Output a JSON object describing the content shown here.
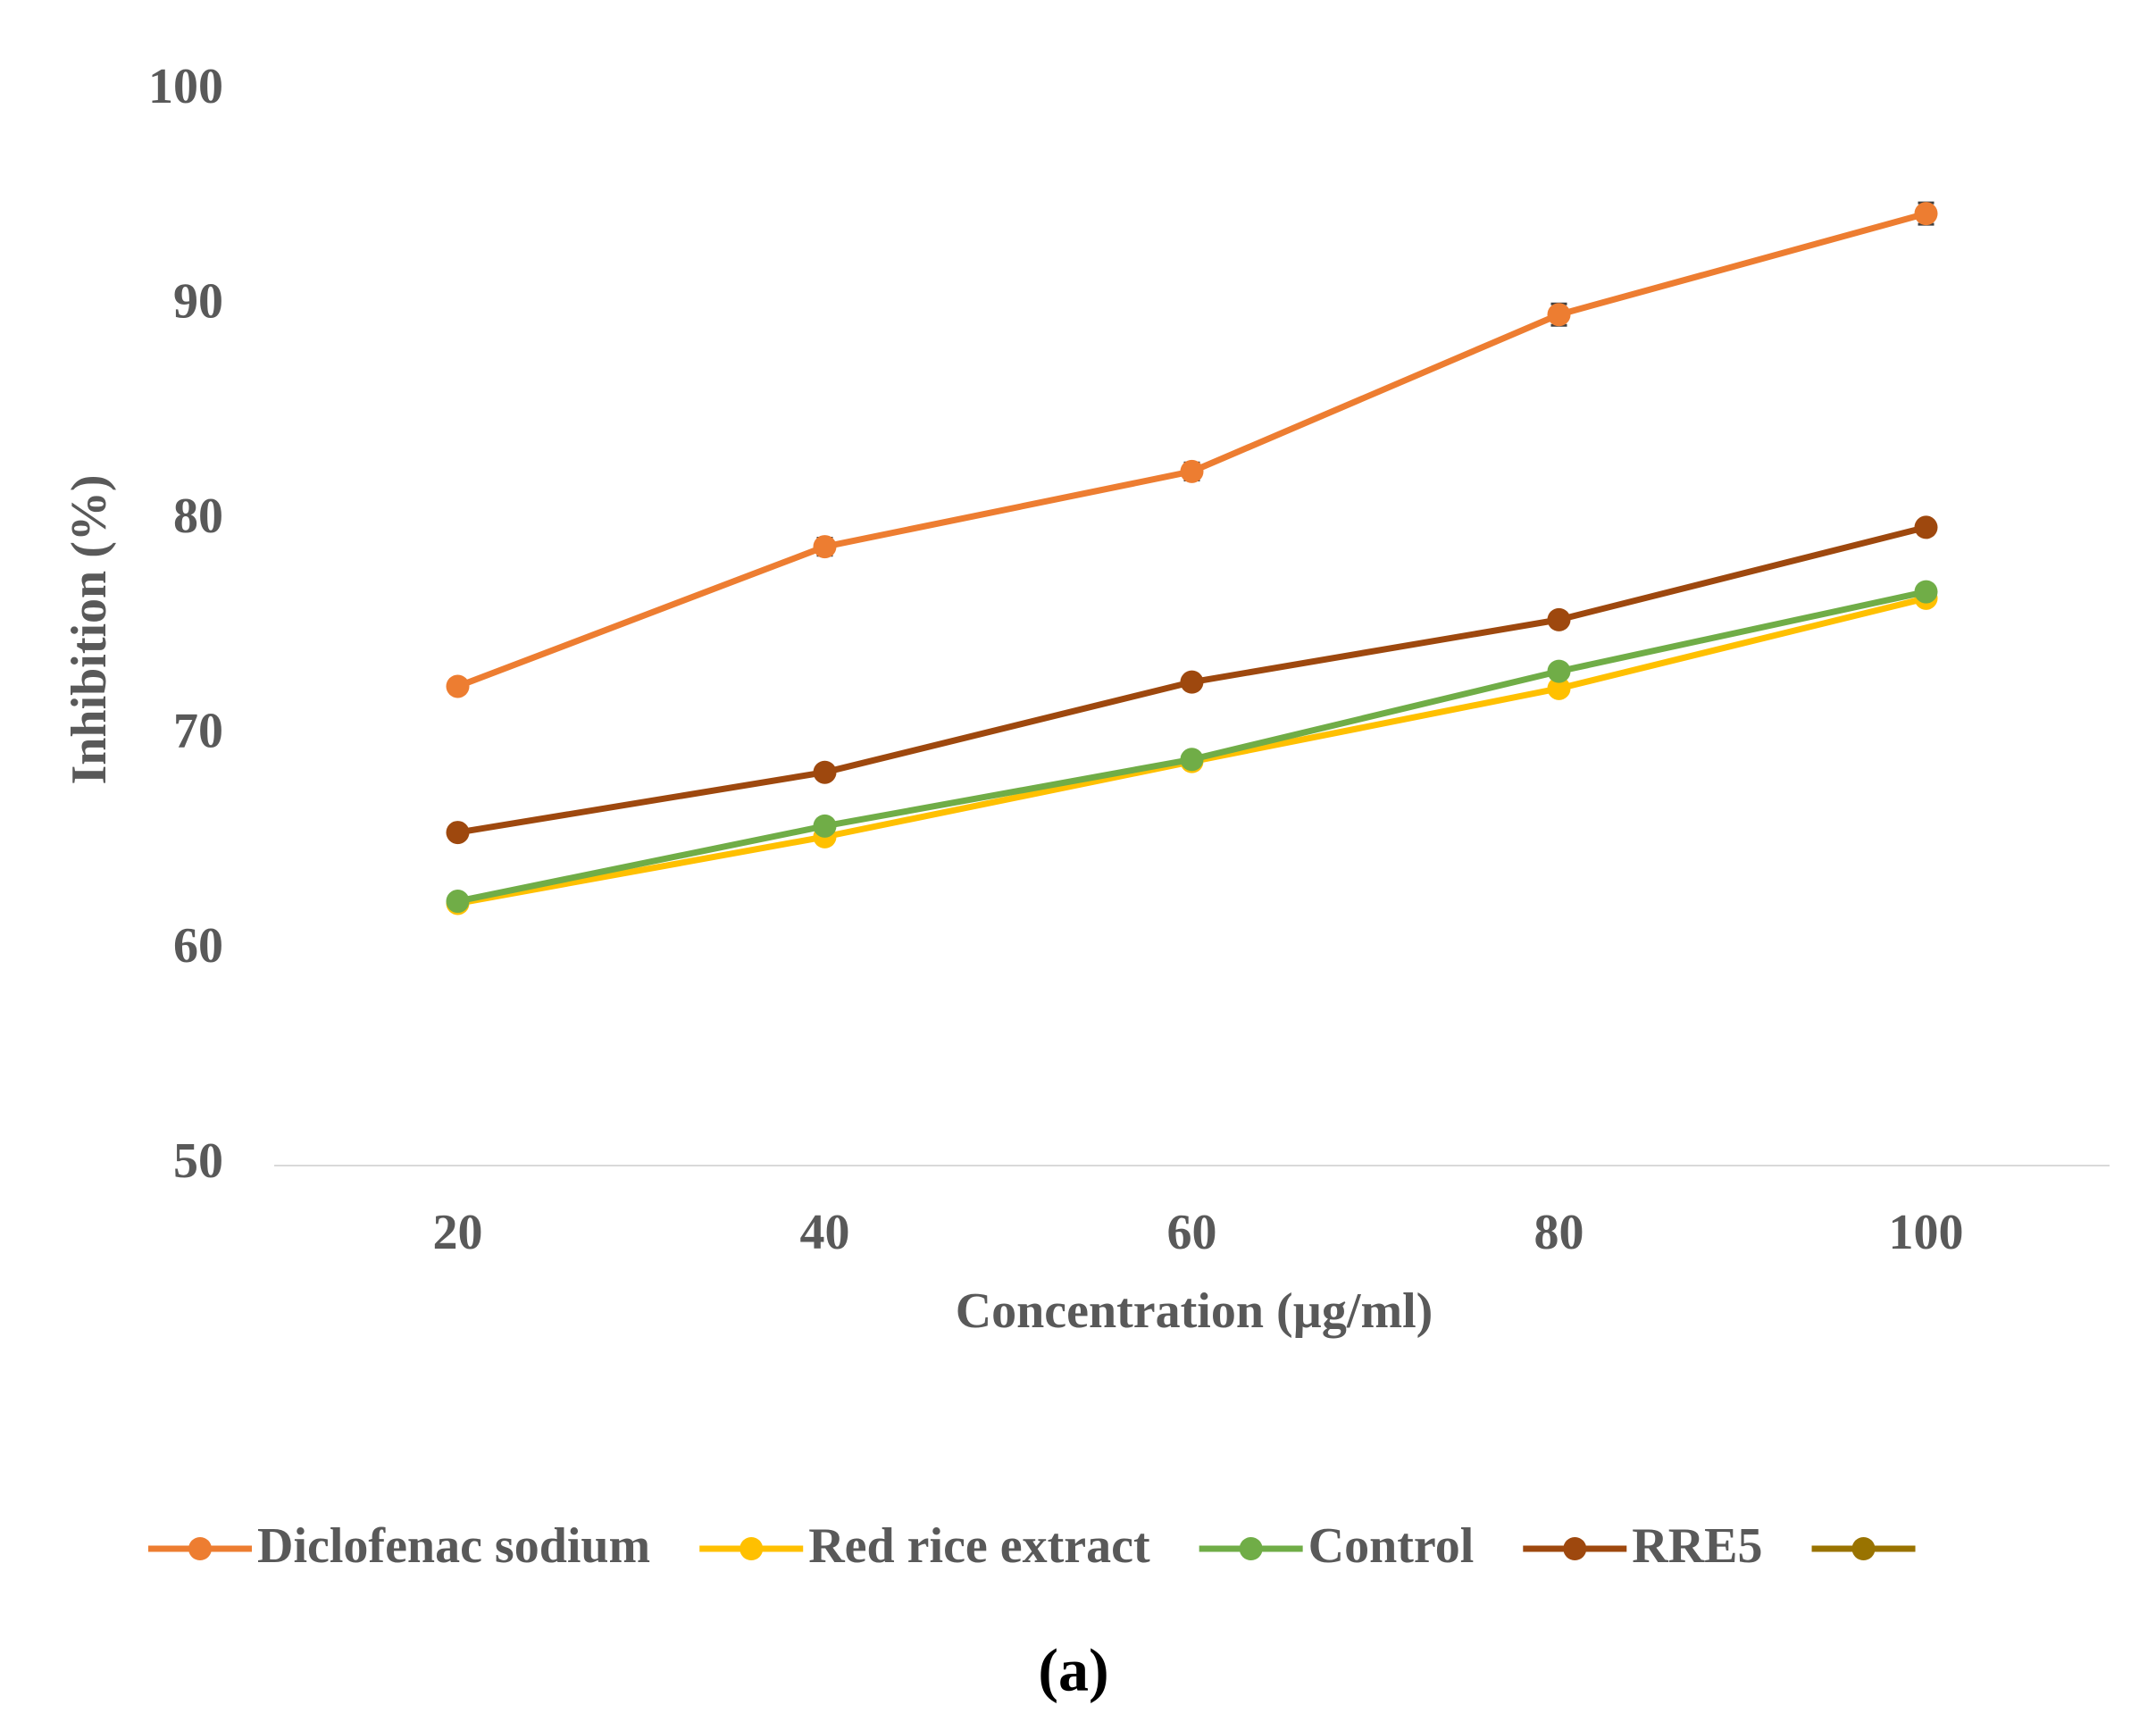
{
  "chart_data": {
    "type": "line",
    "caption": "(a)",
    "xlabel": "Concentration (µg/ml)",
    "ylabel": "Inhibition (%)",
    "categories": [
      "20",
      "40",
      "60",
      "80",
      "100"
    ],
    "series": [
      {
        "name": "Diclofenac sodium",
        "color": "#ed7d31",
        "values": [
          72.3,
          78.8,
          82.3,
          89.6,
          94.3
        ],
        "errors": [
          0.3,
          0.4,
          0.4,
          0.5,
          0.5
        ]
      },
      {
        "name": "Red rice extract",
        "color": "#ffc000",
        "values": [
          62.2,
          65.3,
          68.8,
          72.2,
          76.4
        ]
      },
      {
        "name": "Control",
        "color": "#70ad47",
        "values": [
          62.3,
          65.8,
          68.9,
          73.0,
          76.7
        ]
      },
      {
        "name": "RRE5",
        "color": "#9e480e",
        "values": [
          65.5,
          68.3,
          72.5,
          75.4,
          79.7
        ]
      },
      {
        "color": "#997300",
        "values": [
          null,
          null,
          null,
          null,
          null
        ]
      }
    ],
    "ylim": [
      50,
      100
    ],
    "yticks": [
      50,
      60,
      70,
      80,
      90,
      100
    ],
    "grid": false,
    "legend": "bottom"
  }
}
